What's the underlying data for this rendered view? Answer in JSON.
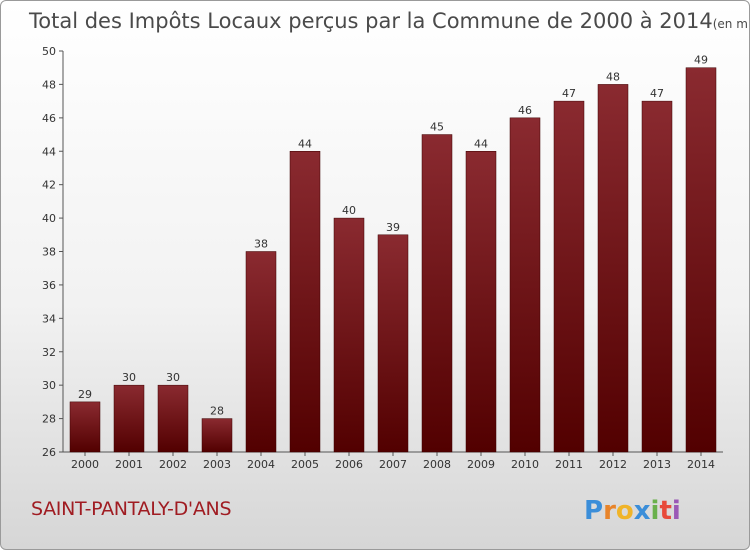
{
  "chart_data": {
    "type": "bar",
    "title": "Total des Impôts Locaux perçus par la Commune de 2000 à 2014",
    "unit_label": "(en milliers d'€)",
    "xlabel": "",
    "ylabel": "",
    "categories": [
      "2000",
      "2001",
      "2002",
      "2003",
      "2004",
      "2005",
      "2006",
      "2007",
      "2008",
      "2009",
      "2010",
      "2011",
      "2012",
      "2013",
      "2014"
    ],
    "values": [
      29,
      30,
      30,
      28,
      38,
      44,
      40,
      39,
      45,
      44,
      46,
      47,
      48,
      47,
      49
    ],
    "ylim": [
      26,
      50
    ],
    "yticks": [
      26,
      28,
      30,
      32,
      34,
      36,
      38,
      40,
      42,
      44,
      46,
      48,
      50
    ],
    "grid": false,
    "bar_color": "#7a1a1f",
    "bar_color_dark": "#520000",
    "commune": "SAINT-PANTALY-D'ANS",
    "brand": [
      "P",
      "r",
      "o",
      "x",
      "i",
      "t",
      "i"
    ],
    "brand_colors": [
      "#3b8ed9",
      "#e8842a",
      "#f0b429",
      "#3b8ed9",
      "#6ab04c",
      "#e84a3a",
      "#9b59b6"
    ]
  }
}
